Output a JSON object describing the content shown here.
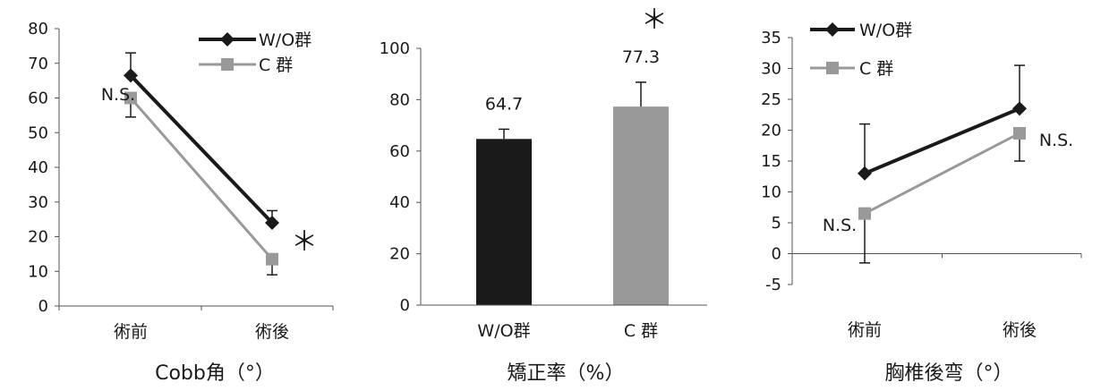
{
  "chart_data": [
    {
      "type": "line",
      "title": "Cobb角（°）",
      "categories": [
        "術前",
        "術後"
      ],
      "ylim": [
        0,
        80
      ],
      "yticks": [
        0,
        10,
        20,
        30,
        40,
        50,
        60,
        70,
        80
      ],
      "grid": false,
      "legend_position": "top-right",
      "series": [
        {
          "name": "W/O群",
          "values": [
            66.5,
            24
          ],
          "err_up": [
            6.5,
            3.5
          ],
          "err_down": [
            0,
            0
          ],
          "color": "#1a1a1a",
          "marker": "diamond"
        },
        {
          "name": "C 群",
          "values": [
            60,
            13.5
          ],
          "err_up": [
            0,
            0
          ],
          "err_down": [
            5.5,
            4.5
          ],
          "color": "#999999",
          "marker": "square"
        }
      ],
      "annotations": [
        {
          "text": "N.S.",
          "category": 0
        },
        {
          "text": "＊",
          "category": 1
        }
      ]
    },
    {
      "type": "bar",
      "title": "矯正率（%）",
      "categories": [
        "W/O群",
        "C 群"
      ],
      "values": [
        64.7,
        77.3
      ],
      "data_labels": [
        "64.7",
        "77.3"
      ],
      "err_up": [
        3.8,
        9.5
      ],
      "colors": [
        "#1a1a1a",
        "#999999"
      ],
      "ylim": [
        0,
        100
      ],
      "yticks": [
        0,
        20,
        40,
        60,
        80,
        100
      ],
      "grid": false,
      "annotations": [
        {
          "text": "＊",
          "category": 1
        }
      ]
    },
    {
      "type": "line",
      "title": "胸椎後弯（°）",
      "categories": [
        "術前",
        "術後"
      ],
      "ylim": [
        -5,
        35
      ],
      "yticks": [
        -5,
        0,
        5,
        10,
        15,
        20,
        25,
        30,
        35
      ],
      "grid": false,
      "legend_position": "top-left",
      "series": [
        {
          "name": "W/O群",
          "values": [
            13,
            23.5
          ],
          "err_up": [
            8,
            7
          ],
          "err_down": [
            0,
            0
          ],
          "color": "#1a1a1a",
          "marker": "diamond"
        },
        {
          "name": "C 群",
          "values": [
            6.5,
            19.5
          ],
          "err_up": [
            0,
            0
          ],
          "err_down": [
            8,
            4.5
          ],
          "color": "#999999",
          "marker": "square"
        }
      ],
      "annotations": [
        {
          "text": "N.S.",
          "category": 0
        },
        {
          "text": "N.S.",
          "category": 1
        }
      ]
    }
  ]
}
